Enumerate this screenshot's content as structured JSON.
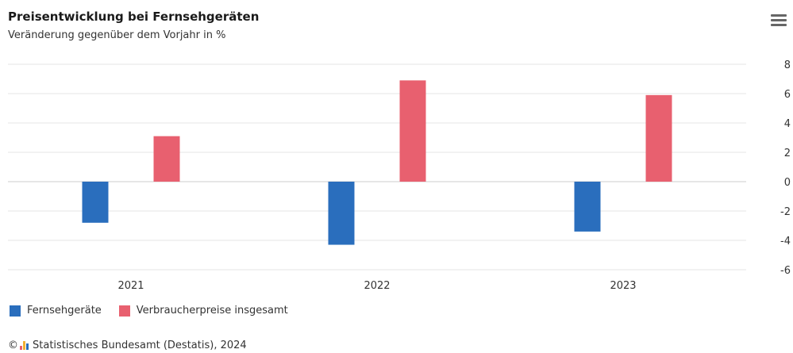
{
  "header": {
    "title": "Preisentwicklung bei Fernsehgeräten",
    "subtitle": "Veränderung gegenüber dem Vorjahr in %"
  },
  "credit": {
    "copyright": "©",
    "text": "Statistisches Bundesamt (Destatis), 2024"
  },
  "chart_data": {
    "type": "bar",
    "categories": [
      "2021",
      "2022",
      "2023"
    ],
    "series": [
      {
        "name": "Fernsehgeräte",
        "values": [
          -2.8,
          -4.3,
          -3.4
        ],
        "color": "#2a6ebd"
      },
      {
        "name": "Verbraucherpreise insgesamt",
        "values": [
          3.1,
          6.9,
          5.9
        ],
        "color": "#e8606f"
      }
    ],
    "title": "Preisentwicklung bei Fernsehgeräten",
    "subtitle": "Veränderung gegenüber dem Vorjahr in %",
    "xlabel": "",
    "ylabel": "",
    "ylim": [
      -6,
      8
    ],
    "yticks": [
      8,
      6,
      4,
      2,
      0,
      -2,
      -4,
      -6
    ],
    "grid": true,
    "legend": "bottom-left"
  }
}
